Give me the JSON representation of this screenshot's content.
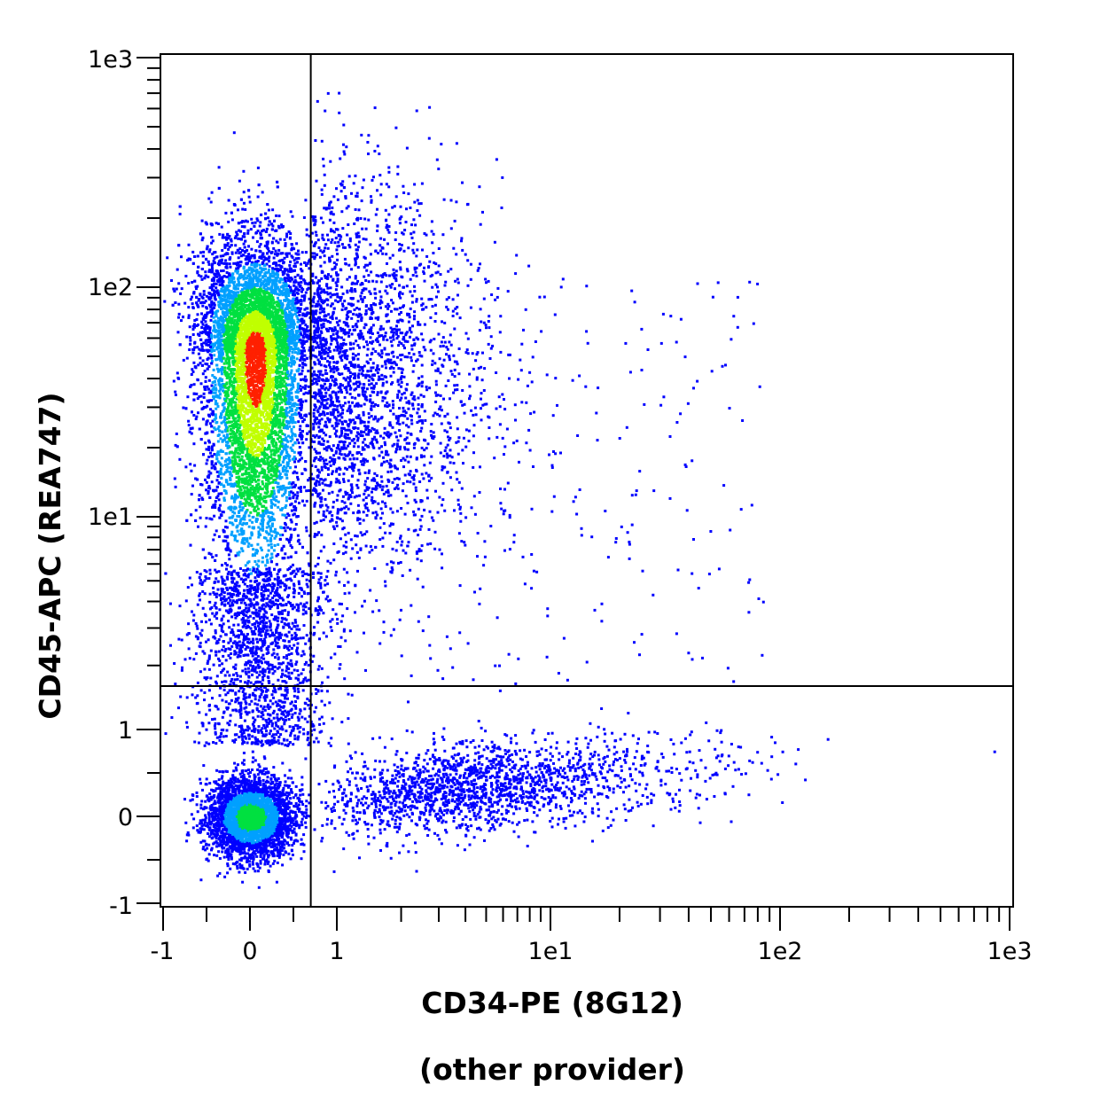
{
  "chart_data": {
    "type": "scatter",
    "xlabel": "CD34-PE (8G12)",
    "xlabel_note": "(other provider)",
    "ylabel": "CD45-APC (REA747)",
    "x_scale": "biexponential (linear near 0, log above 1)",
    "y_scale": "biexponential (linear near 0, log above 1)",
    "x_ticks": [
      "-1",
      "0",
      "1",
      "1e1",
      "1e2",
      "1e3"
    ],
    "y_ticks": [
      "-1",
      "0",
      "1",
      "1e1",
      "1e2",
      "1e3"
    ],
    "xlim": [
      -1,
      1000
    ],
    "ylim": [
      -1,
      1000
    ],
    "gates": {
      "x_threshold": 0.7,
      "y_threshold": 1.6
    },
    "density_colors": [
      "#0000ff",
      "#00a0ff",
      "#00e040",
      "#c0ff00",
      "#ff2000"
    ],
    "populations": [
      {
        "x_center": 0.05,
        "y_center": 52,
        "x_spread": 0.3,
        "y_spread_decades": 0.45,
        "peak_color": "#ff2000"
      },
      {
        "x_center": 0.0,
        "y_center": 0.0,
        "x_spread": 0.25,
        "y_spread": 0.25,
        "peak_color": "#00c040"
      },
      {
        "x_center": 6,
        "y_center": 0.3,
        "x_spread_decades": 0.5,
        "y_spread": 0.3,
        "peak_color": "#0000ff"
      }
    ]
  }
}
